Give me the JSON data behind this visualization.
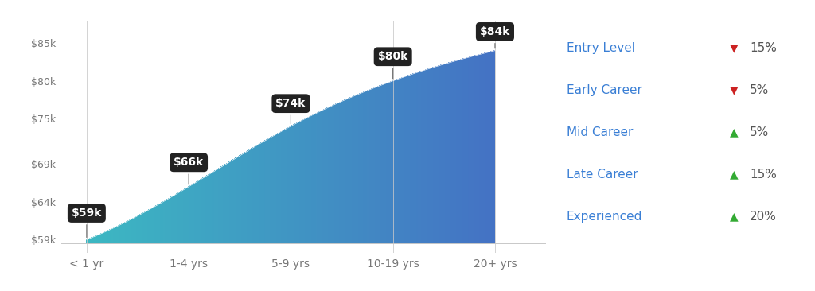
{
  "x_labels": [
    "< 1 yr",
    "1-4 yrs",
    "5-9 yrs",
    "10-19 yrs",
    "20+ yrs"
  ],
  "x_values": [
    0,
    1,
    2,
    3,
    4
  ],
  "y_values": [
    59000,
    66000,
    74000,
    80000,
    84000
  ],
  "y_base": 58500,
  "y_ticks": [
    59000,
    64000,
    69000,
    75000,
    80000,
    85000
  ],
  "y_tick_labels": [
    "$59k",
    "$64k",
    "$69k",
    "$75k",
    "$80k",
    "$85k"
  ],
  "annotations": [
    "$59k",
    "$66k",
    "$74k",
    "$80k",
    "$84k"
  ],
  "annotation_offsets_y": [
    3500,
    3200,
    3000,
    3200,
    2500
  ],
  "color_left": "#3cb8c2",
  "color_right": "#4472c4",
  "bg_color": "#ffffff",
  "grid_color": "#c8c8c8",
  "legend_items": [
    {
      "label": "Entry Level",
      "arrow": "down",
      "color": "#cc2222",
      "pct": "15%"
    },
    {
      "label": "Early Career",
      "arrow": "down",
      "color": "#cc2222",
      "pct": "5%"
    },
    {
      "label": "Mid Career",
      "arrow": "up",
      "color": "#33aa33",
      "pct": "5%"
    },
    {
      "label": "Late Career",
      "arrow": "up",
      "color": "#33aa33",
      "pct": "15%"
    },
    {
      "label": "Experienced",
      "arrow": "up",
      "color": "#33aa33",
      "pct": "20%"
    }
  ],
  "label_color": "#3a7fd5",
  "annotation_box_color": "#222222",
  "annotation_text_color": "#ffffff",
  "figsize": [
    10.24,
    3.66
  ],
  "dpi": 100,
  "ylim": [
    57200,
    88000
  ],
  "xlim": [
    -0.25,
    4.5
  ]
}
